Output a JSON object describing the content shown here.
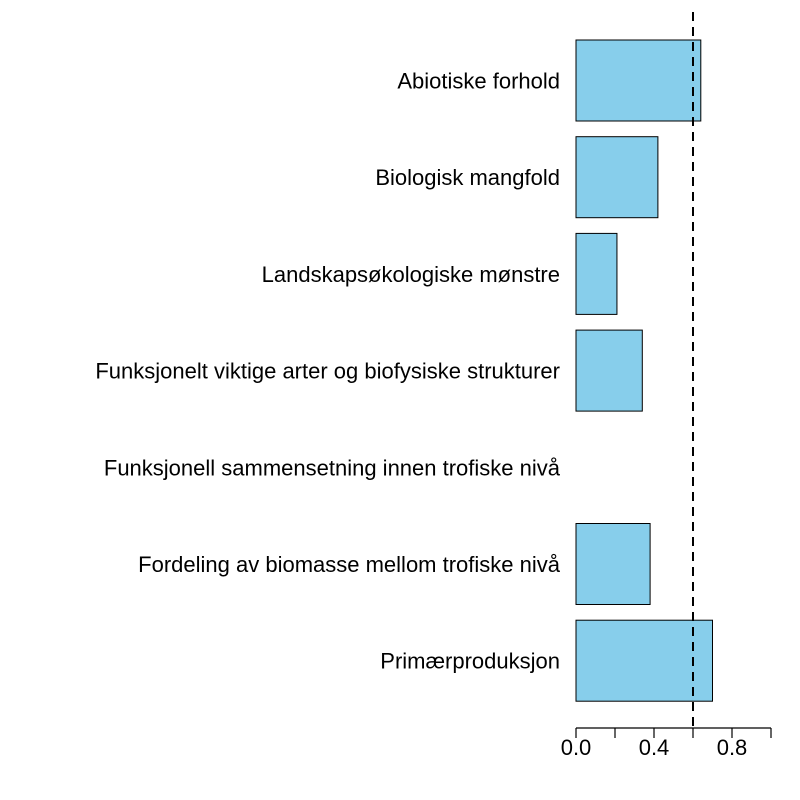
{
  "chart_data": {
    "type": "bar",
    "orientation": "horizontal",
    "categories": [
      "Abiotiske forhold",
      "Biologisk mangfold",
      "Landskapsøkologiske mønstre",
      "Funksjonelt viktige arter og biofysiske strukturer",
      "Funksjonell sammensetning innen trofiske nivå",
      "Fordeling av biomasse mellom trofiske nivå",
      "Primærproduksjon"
    ],
    "values": [
      0.64,
      0.42,
      0.21,
      0.34,
      0.0,
      0.38,
      0.7
    ],
    "xlim": [
      0,
      1.0
    ],
    "x_ticks": [
      0,
      0.2,
      0.4,
      0.6,
      0.8,
      1.0
    ],
    "x_tick_labels": [
      "0.0",
      "",
      "0.4",
      "",
      "0.8",
      ""
    ],
    "threshold": 0.6,
    "threshold_style": "dashed",
    "bar_color": "#87CEEB",
    "title": "",
    "xlabel": "",
    "ylabel": "",
    "grid": false,
    "legend": "none"
  }
}
